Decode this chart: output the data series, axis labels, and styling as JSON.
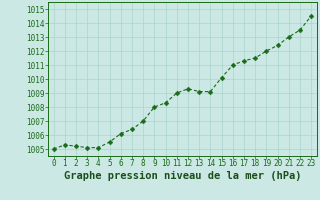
{
  "x": [
    0,
    1,
    2,
    3,
    4,
    5,
    6,
    7,
    8,
    9,
    10,
    11,
    12,
    13,
    14,
    15,
    16,
    17,
    18,
    19,
    20,
    21,
    22,
    23
  ],
  "y": [
    1005.0,
    1005.3,
    1005.2,
    1005.1,
    1005.1,
    1005.5,
    1006.1,
    1006.4,
    1007.0,
    1008.0,
    1008.3,
    1009.0,
    1009.3,
    1009.1,
    1009.1,
    1010.1,
    1011.0,
    1011.3,
    1011.5,
    1012.0,
    1012.4,
    1013.0,
    1013.5,
    1014.5
  ],
  "line_color": "#1a6b1a",
  "marker": "D",
  "marker_size": 2.5,
  "bg_color": "#cce8e4",
  "grid_color": "#aad4ce",
  "title": "Graphe pression niveau de la mer (hPa)",
  "title_color": "#1a4e1a",
  "title_fontsize": 7.5,
  "tick_fontsize": 5.5,
  "ylim": [
    1004.5,
    1015.5
  ],
  "yticks": [
    1005,
    1006,
    1007,
    1008,
    1009,
    1010,
    1011,
    1012,
    1013,
    1014,
    1015
  ],
  "xticks": [
    0,
    1,
    2,
    3,
    4,
    5,
    6,
    7,
    8,
    9,
    10,
    11,
    12,
    13,
    14,
    15,
    16,
    17,
    18,
    19,
    20,
    21,
    22,
    23
  ]
}
